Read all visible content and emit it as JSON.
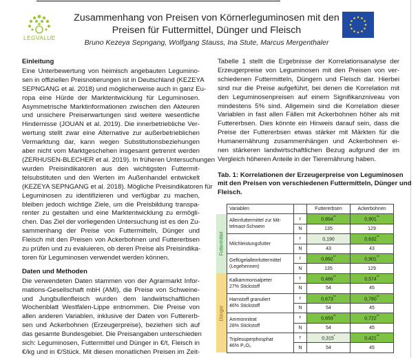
{
  "header": {
    "title_line1": "Zusammenhang von Preisen von Körnerleguminosen mit den",
    "title_line2": "Preisen für Futtermittel, Dünger und Fleisch",
    "authors": "Bruno Kezeya Sepngang, Wolfgang Stauss, Ina Stute, Marcus Mergenthaler",
    "logo_text": "LEGVALUE",
    "logo_color": "#8cb82f",
    "eu_flag_color": "#1f4aa3"
  },
  "left": {
    "h1": "Einleitung",
    "p1": [
      "Eine Unterbewertung von heimisch angebauten Legumino-",
      "sen in offiziellen Preisnotierungen ist in Deutschland (KEZEYA",
      "SEPNGANG et al. 2018) und möglicherweise auch in ganz Eu-",
      "ropa eine Hürde der Marktentwicklung für Leguminosen.",
      "Asymmetrische Marktinformationen zwischen den Akteuren",
      "und unsichere Preiserwartungen sind weitere wesentliche",
      "Hindernisse (JOUAN et al. 2019). Die innerbetriebliche Ver-",
      "wertung stellt zwar eine Alternative zur außerbetrieblichen",
      "Vermarktung dar, kann wegen Substitutionsbeziehungen",
      "aber nicht vom Marktgeschehen insgesamt getrennt werden",
      "(ZERHUSEN-BLECHER et al. 2019). In früheren Untersuchungen",
      "wurden Preisindikatoren aus den wichtigsten Futtermit-",
      "telsubstituten und den Werten im Außenhandel entwickelt",
      "(KEZEYA SEPNGANG et al. 2018). Mögliche Preisindikatoren für",
      "Leguminosen zu identifizieren und verfügbar zu machen,",
      "bleiben jedoch wichtige Ziele, um die Preisbildung transpa-",
      "renter zu gestalten und eine Marktentwicklung zu ermögli-",
      "chen. Das Ziel der vorliegenden Untersuchung ist es den Zu-",
      "sammenhang der Preise von Futtermitteln, Dünger und",
      "Fleisch mit den Preisen von Ackerbohnen und Futtererbsen",
      "zu prüfen und zu evaluieren, ob deren Preise als Preisindika-",
      "toren für Leguminosen verwendet werden können."
    ],
    "h2": "Daten und Methoden",
    "p2": [
      "Die verwendeten Daten stammen von der Agrarmarkt Infor-",
      "mations-Gesellschaft mbH (AMI), die Preise von Schweine-",
      "und Jungbullenfleisch wurden dem landwirtschaftlichen",
      "Wochenblatt Westfalen-Lippe entnommen. Die Preise von",
      "allen anderen Variablen, inklusive der Daten von Futtererb-",
      "sen und Ackerbohnen (Erzeugerpreise), beziehen sich auf",
      "das gesamte Bundesgebiet. Die Preisangaben unterschieden",
      "sich: Leguminosen, Futtermittel und Dünger in €/t, Fleisch in",
      "€/kg und in €/Stück. Mit diesen monatlichen Preisen im Zeit-"
    ]
  },
  "right": {
    "p1": [
      "Tabelle 1 stellt die Ergebnisse der Korrelationsanalyse der",
      "Erzeugerpreise von Leguminosen mit den Preisen von ver-",
      "schiedenen Futtermitteln, Düngern und Fleisch dar. Hierbei",
      "sind nur die Preise aufgeführt, bei denen die Korrelation mit",
      "den Leguminosenpreisen auf einem Signifikanzniveau von",
      "mindestens 5% sind. Allgemein sind die Korrelation dieser",
      "Variablen in fast allen Fällen mit Ackerbohnen höher als mit",
      "Futtererbsen. Dies könnte ein Hinweis darauf sein, dass die",
      "Preise der Futtererbsen etwas stärker mit Märkten für die",
      "Humanernährung zusammenhängen und Ackerbohnen ei-",
      "nen stärkeren landwirtschaftlichen Bezug aufgrund der im",
      "Vergleich höheren Anteile in der Tierernährung haben."
    ],
    "caption": [
      "Tab. 1: Korrelationen der Erzeugerpreise von Leguminosen",
      "mit den Preisen von verschiedenen Futtermitteln, Dünger und",
      "Fleisch."
    ]
  },
  "table": {
    "headers": {
      "variable": "Variablen",
      "c1": "Futtererbsen",
      "c2": "Ackerbohnen"
    },
    "groups": [
      {
        "name": "Futtermittel",
        "rows": [
          {
            "var": [
              "Alleinfuttermittel zur Mit-",
              "telmast-Schwein"
            ],
            "r1": "0,894",
            "s1": "**",
            "r2": "0,901",
            "s2": "**",
            "n1": "135",
            "n2": "129",
            "hl1": "strong",
            "hl2": "strong"
          },
          {
            "var": [
              "Milchleistungsfutter",
              ""
            ],
            "r1": "0,190",
            "s1": "",
            "r2": "0,632",
            "s2": "**",
            "n1": "43",
            "n2": "43",
            "hl1": "weak",
            "hl2": "strong"
          },
          {
            "var": [
              "Geflügelalleinfuttermittel",
              "(Legehennen)"
            ],
            "r1": "0,892",
            "s1": "**",
            "r2": "0,901",
            "s2": "**",
            "n1": "135",
            "n2": "129",
            "hl1": "strong",
            "hl2": "strong"
          }
        ]
      },
      {
        "name": "Dünger",
        "rows": [
          {
            "var": [
              "Kalkammonsalpeter",
              "27% Stickstoff"
            ],
            "r1": "0,486",
            "s1": "**",
            "r2": "0,574",
            "s2": "**",
            "n1": "54",
            "n2": "45",
            "hl1": "strong",
            "hl2": "strong"
          },
          {
            "var": [
              "Harnstoff granuliert",
              "46% Stickstoff"
            ],
            "r1": "0,673",
            "s1": "**",
            "r2": "0,760",
            "s2": "**",
            "n1": "54",
            "n2": "45",
            "hl1": "strong",
            "hl2": "strong"
          },
          {
            "var": [
              "Ammonnitrat",
              "28% Stickstoff"
            ],
            "r1": "0,659",
            "s1": "**",
            "r2": "0,722",
            "s2": "**",
            "n1": "54",
            "n2": "45",
            "hl1": "strong",
            "hl2": "strong"
          },
          {
            "var": [
              "Triplesuperphosphat",
              "46% P₂O₅"
            ],
            "r1": "0,315",
            "s1": "*",
            "r2": "0,421",
            "s2": "**",
            "n1": "54",
            "n2": "45",
            "hl1": "weak",
            "hl2": "strong"
          }
        ]
      }
    ],
    "r_label": "r",
    "n_label": "N",
    "colors": {
      "strong": "#7dc243",
      "weak": "#e4efdd",
      "futtermittel": "#d6ecd3",
      "duenger": "#f7d98a"
    }
  }
}
